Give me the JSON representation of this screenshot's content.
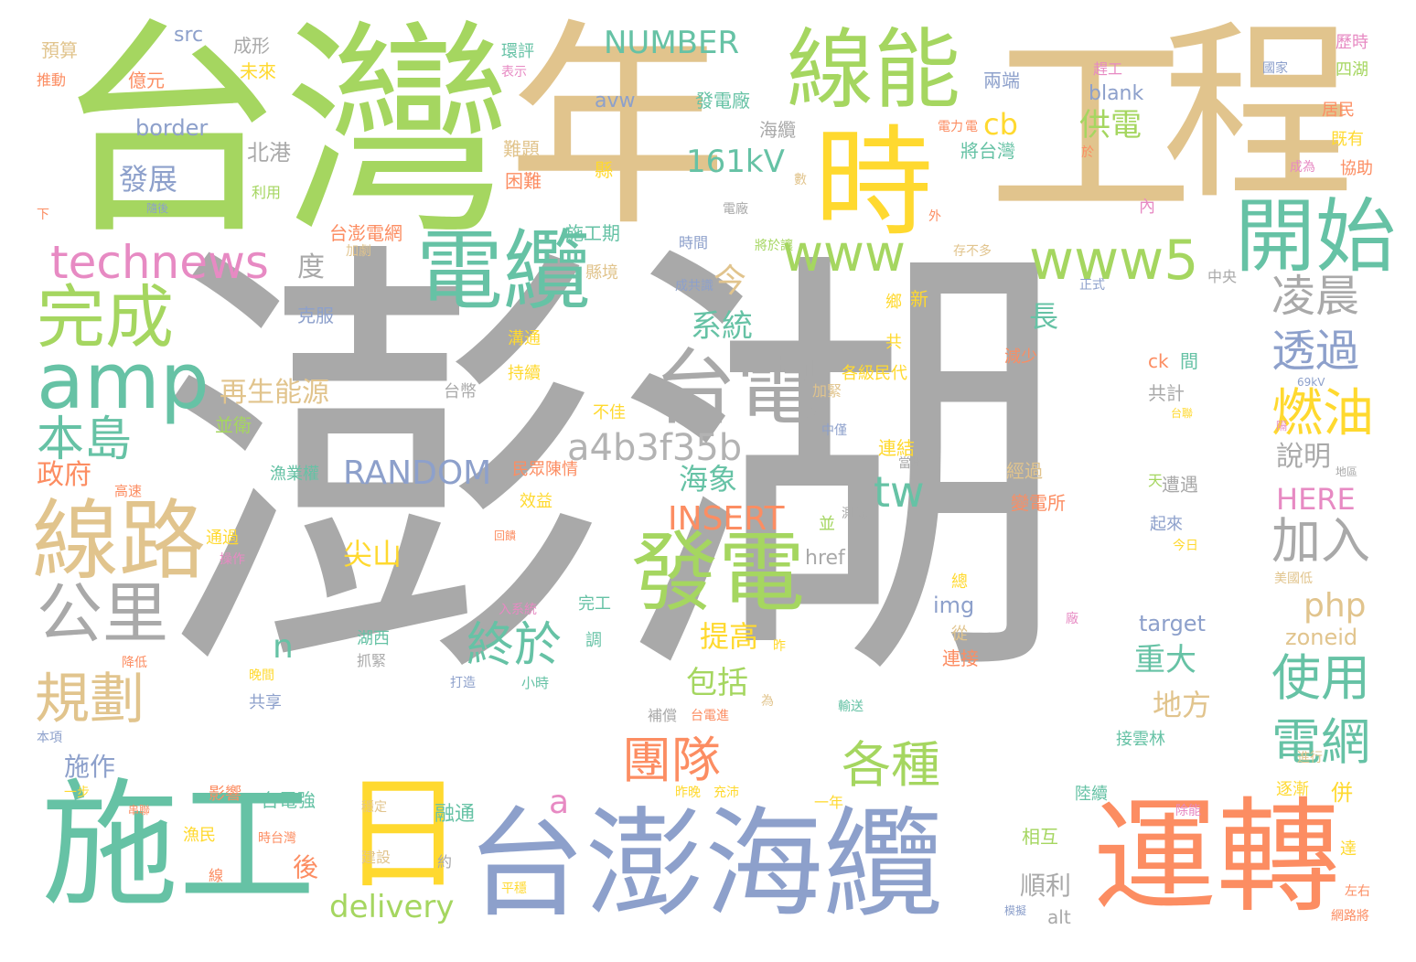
{
  "colors": {
    "grey": "#a9a9a9",
    "tan": "#e1c48d",
    "green": "#a5d660",
    "orange": "#fc8d62",
    "blue": "#8da0cb",
    "teal": "#66c2a5",
    "yellow": "#ffd92f",
    "pink": "#e78ac3",
    "lightgrey": "#b3b3b3"
  },
  "words": [
    "澎湖",
    "台灣",
    "年",
    "工",
    "程",
    "時",
    "日",
    "施工",
    "台澎海纜",
    "運轉",
    "線能",
    "電纜",
    "開始",
    "發電",
    "amp",
    "線路",
    "完成",
    "台電",
    "公里",
    "technews",
    "www",
    "www5",
    "a4b3f35b",
    "凌晨",
    "透過",
    "燃油",
    "加入",
    "使用",
    "電網",
    "終於",
    "各種",
    "團隊",
    "規劃",
    "本島",
    "尖山",
    "RANDOM",
    "INSERT",
    "NUMBER",
    "161kV",
    "delivery",
    "tw",
    "php",
    "HERE",
    "供電",
    "系統",
    "今",
    "cb",
    "發展",
    "border",
    "src",
    "北港",
    "度",
    "政府",
    "再生能源",
    "海象",
    "包括",
    "提高",
    "重大",
    "地方",
    "長",
    "說明",
    "target",
    "zoneid",
    "img",
    "href",
    "blank",
    "avw",
    "發電廠",
    "海纜",
    "將台灣",
    "困難",
    "難題",
    "施工期",
    "縣境",
    "台澎電網",
    "成形",
    "預算",
    "億元",
    "推動",
    "環評",
    "表示",
    "未來",
    "利用",
    "隨後",
    "下",
    "克服",
    "並衛",
    "溝通",
    "台幣",
    "不佳",
    "民眾陳情",
    "效益",
    "漁業權",
    "高速",
    "通過",
    "操作",
    "湖西",
    "抓緊",
    "共享",
    "影響",
    "台電強",
    "融通",
    "順利",
    "相互",
    "建設",
    "穩定",
    "漁民",
    "時台灣",
    "約",
    "線",
    "後",
    "施作",
    "一步",
    "本項",
    "降低",
    "晚間",
    "打造",
    "小時",
    "補償",
    "台電進",
    "遭遇",
    "起來",
    "接雲林",
    "陸續",
    "逐漸",
    "併",
    "達",
    "左右",
    "網路將",
    "除能",
    "進行",
    "今日",
    "美國低",
    "歷時",
    "四湖",
    "居民",
    "既有",
    "協助",
    "國家",
    "趕工",
    "兩端",
    "內",
    "ck",
    "間",
    "共計",
    "天",
    "經過",
    "變電所",
    "連結",
    "各級民代",
    "減少",
    "鄉",
    "新",
    "共",
    "中僅",
    "加緊",
    "正式",
    "中央",
    "存不多",
    "外",
    "電力",
    "成為",
    "於",
    "數",
    "電廠",
    "時間",
    "成共識",
    "將於讓",
    "持續",
    "縣",
    "連接",
    "從",
    "總",
    "完工",
    "調",
    "平穩",
    "充沛",
    "昨晚",
    "一年",
    "輸送",
    "為",
    "昨",
    "並",
    "測試",
    "當地",
    "地區",
    "台聯",
    "69kV",
    "隔",
    "廠",
    "入系統",
    "回饋",
    "串聯",
    "模擬",
    "加劇",
    "a",
    "n",
    "alt",
    "電"
  ]
}
